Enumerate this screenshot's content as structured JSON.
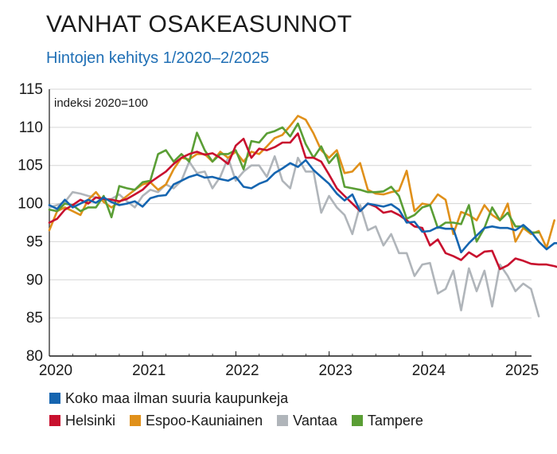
{
  "title": "VANHAT OSAKEASUNNOT",
  "subtitle": "Hintojen kehitys 1/2020–2/2025",
  "chart_data": {
    "type": "line",
    "annotation": "indeksi 2020=100",
    "ylim": [
      80,
      115
    ],
    "yticks": [
      80,
      85,
      90,
      95,
      100,
      105,
      110,
      115
    ],
    "xlim": [
      2020.0,
      2025.17
    ],
    "xticks": [
      {
        "label": "2020",
        "value": 2020.0
      },
      {
        "label": "2021",
        "value": 2021.0
      },
      {
        "label": "2022",
        "value": 2022.0
      },
      {
        "label": "2023",
        "value": 2023.0
      },
      {
        "label": "2024",
        "value": 2024.0
      },
      {
        "label": "2025",
        "value": 2025.0
      }
    ],
    "grid": "horizontal",
    "x_start": 2020.0,
    "x_step": 0.0833,
    "series": [
      {
        "name": "Koko maa ilman suuria kaupunkeja",
        "color": "#1565b0",
        "values": [
          99.8,
          99.3,
          100.5,
          99.5,
          100.0,
          100.5,
          100.1,
          100.8,
          100.2,
          99.8,
          100.0,
          100.3,
          99.6,
          100.7,
          101.0,
          101.1,
          102.5,
          103.0,
          103.5,
          103.8,
          103.4,
          103.5,
          103.2,
          103.0,
          103.5,
          102.2,
          102.0,
          102.6,
          103.0,
          104.0,
          104.6,
          105.3,
          104.8,
          105.7,
          104.4,
          103.5,
          102.6,
          101.3,
          100.4,
          101.2,
          99.0,
          100.0,
          99.8,
          99.6,
          99.9,
          99.2,
          97.5,
          97.6,
          96.3,
          96.4,
          96.9,
          96.7,
          96.7,
          93.6,
          94.8,
          95.8,
          96.8,
          97.0,
          96.8,
          96.8,
          96.5,
          97.2,
          96.3,
          95.0,
          94.0,
          94.8,
          94.8,
          94.0
        ]
      },
      {
        "name": "Helsinki",
        "color": "#c8102e",
        "values": [
          97.5,
          98.0,
          99.2,
          99.8,
          100.5,
          100.0,
          100.8,
          100.6,
          100.5,
          100.3,
          100.6,
          101.2,
          101.8,
          102.8,
          103.5,
          104.2,
          105.2,
          106.0,
          106.5,
          106.8,
          106.4,
          106.6,
          106.0,
          105.2,
          107.6,
          108.5,
          106.0,
          107.2,
          107.0,
          107.4,
          108.0,
          108.0,
          109.2,
          106.0,
          106.0,
          105.5,
          103.8,
          102.0,
          101.0,
          100.0,
          99.0,
          100.0,
          99.6,
          98.8,
          99.0,
          98.5,
          97.8,
          97.0,
          96.8,
          94.5,
          95.3,
          93.5,
          93.1,
          92.6,
          93.6,
          93.0,
          93.7,
          93.8,
          91.4,
          91.9,
          92.8,
          92.5,
          92.1,
          92.0,
          92.0,
          91.8,
          91.5
        ]
      },
      {
        "name": "Espoo-Kauniainen",
        "color": "#e0901a",
        "values": [
          96.5,
          99.0,
          99.5,
          99.0,
          98.5,
          100.5,
          101.5,
          100.2,
          99.5,
          100.2,
          101.0,
          101.8,
          102.5,
          102.8,
          101.8,
          102.5,
          104.5,
          106.0,
          105.8,
          106.5,
          106.5,
          105.5,
          106.8,
          106.0,
          106.8,
          105.5,
          106.8,
          106.5,
          107.5,
          108.6,
          109.0,
          110.2,
          111.5,
          111.0,
          109.2,
          107.0,
          106.0,
          107.0,
          104.0,
          104.2,
          105.3,
          101.8,
          101.3,
          101.2,
          101.5,
          101.7,
          104.3,
          99.0,
          100.0,
          99.8,
          101.2,
          100.5,
          96.0,
          98.9,
          98.5,
          97.8,
          99.8,
          98.5,
          97.8,
          100.0,
          95.0,
          96.8,
          96.0,
          96.4,
          94.2,
          97.8
        ]
      },
      {
        "name": "Vantaa",
        "color": "#b0b5ba",
        "values": [
          99.5,
          99.8,
          100.2,
          101.5,
          101.3,
          101.0,
          100.8,
          100.5,
          100.6,
          101.2,
          100.3,
          99.5,
          101.0,
          101.8,
          101.5,
          102.5,
          102.0,
          103.0,
          105.5,
          104.0,
          104.2,
          102.0,
          103.5,
          106.0,
          103.0,
          104.2,
          105.0,
          105.0,
          103.5,
          106.2,
          103.0,
          102.0,
          106.0,
          104.2,
          104.2,
          98.8,
          101.0,
          99.5,
          98.5,
          96.0,
          99.8,
          96.5,
          97.0,
          94.5,
          96.0,
          93.5,
          93.5,
          90.5,
          92.0,
          92.2,
          88.2,
          88.8,
          91.2,
          86.0,
          91.5,
          88.5,
          91.2,
          86.5,
          92.0,
          90.5,
          88.5,
          89.5,
          88.8,
          85.2
        ]
      },
      {
        "name": "Tampere",
        "color": "#5a9e35",
        "values": [
          99.2,
          99.0,
          100.0,
          99.8,
          99.0,
          99.5,
          99.5,
          101.0,
          98.2,
          102.3,
          102.0,
          101.8,
          102.8,
          103.0,
          106.5,
          107.0,
          105.5,
          106.5,
          105.5,
          109.3,
          107.0,
          105.5,
          106.5,
          106.5,
          107.0,
          104.5,
          108.2,
          108.0,
          109.2,
          109.5,
          110.0,
          108.8,
          110.5,
          107.8,
          106.0,
          107.5,
          105.3,
          106.5,
          102.2,
          102.0,
          101.8,
          101.5,
          101.5,
          101.6,
          102.2,
          101.0,
          98.0,
          98.5,
          99.5,
          99.8,
          96.8,
          97.5,
          97.5,
          97.3,
          99.8,
          95.0,
          96.8,
          99.5,
          97.8,
          98.8,
          97.0,
          97.0,
          96.2,
          96.2
        ]
      }
    ]
  }
}
